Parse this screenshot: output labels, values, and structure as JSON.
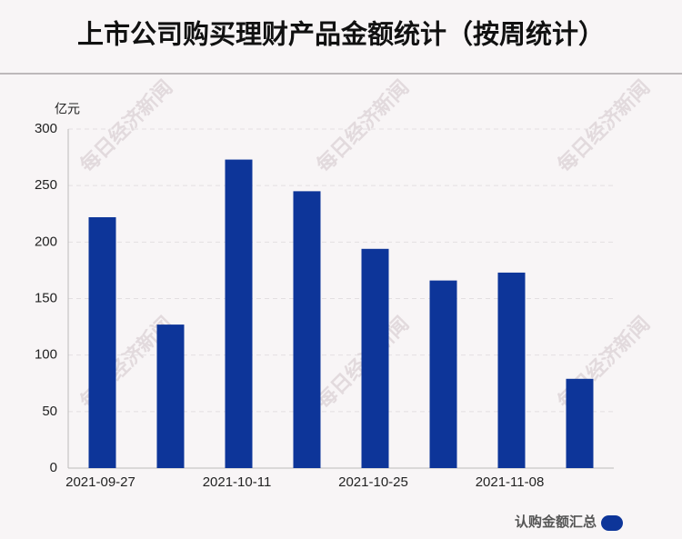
{
  "chart_data": {
    "type": "bar",
    "title": "上市公司购买理财产品金额统计（按周统计）",
    "y_unit": "亿元",
    "watermark": "每日经济新闻",
    "categories": [
      "2021-09-27",
      null,
      "2021-10-11",
      null,
      "2021-10-25",
      null,
      "2021-11-08",
      null
    ],
    "series": [
      {
        "name": "认购金额汇总",
        "color": "#0d3599",
        "values": [
          222,
          127,
          273,
          245,
          194,
          166,
          173,
          79
        ]
      }
    ],
    "ylim": [
      0,
      300
    ],
    "yticks": [
      0,
      50,
      100,
      150,
      200,
      250,
      300
    ],
    "grid": true,
    "legend": "bottom-right"
  }
}
